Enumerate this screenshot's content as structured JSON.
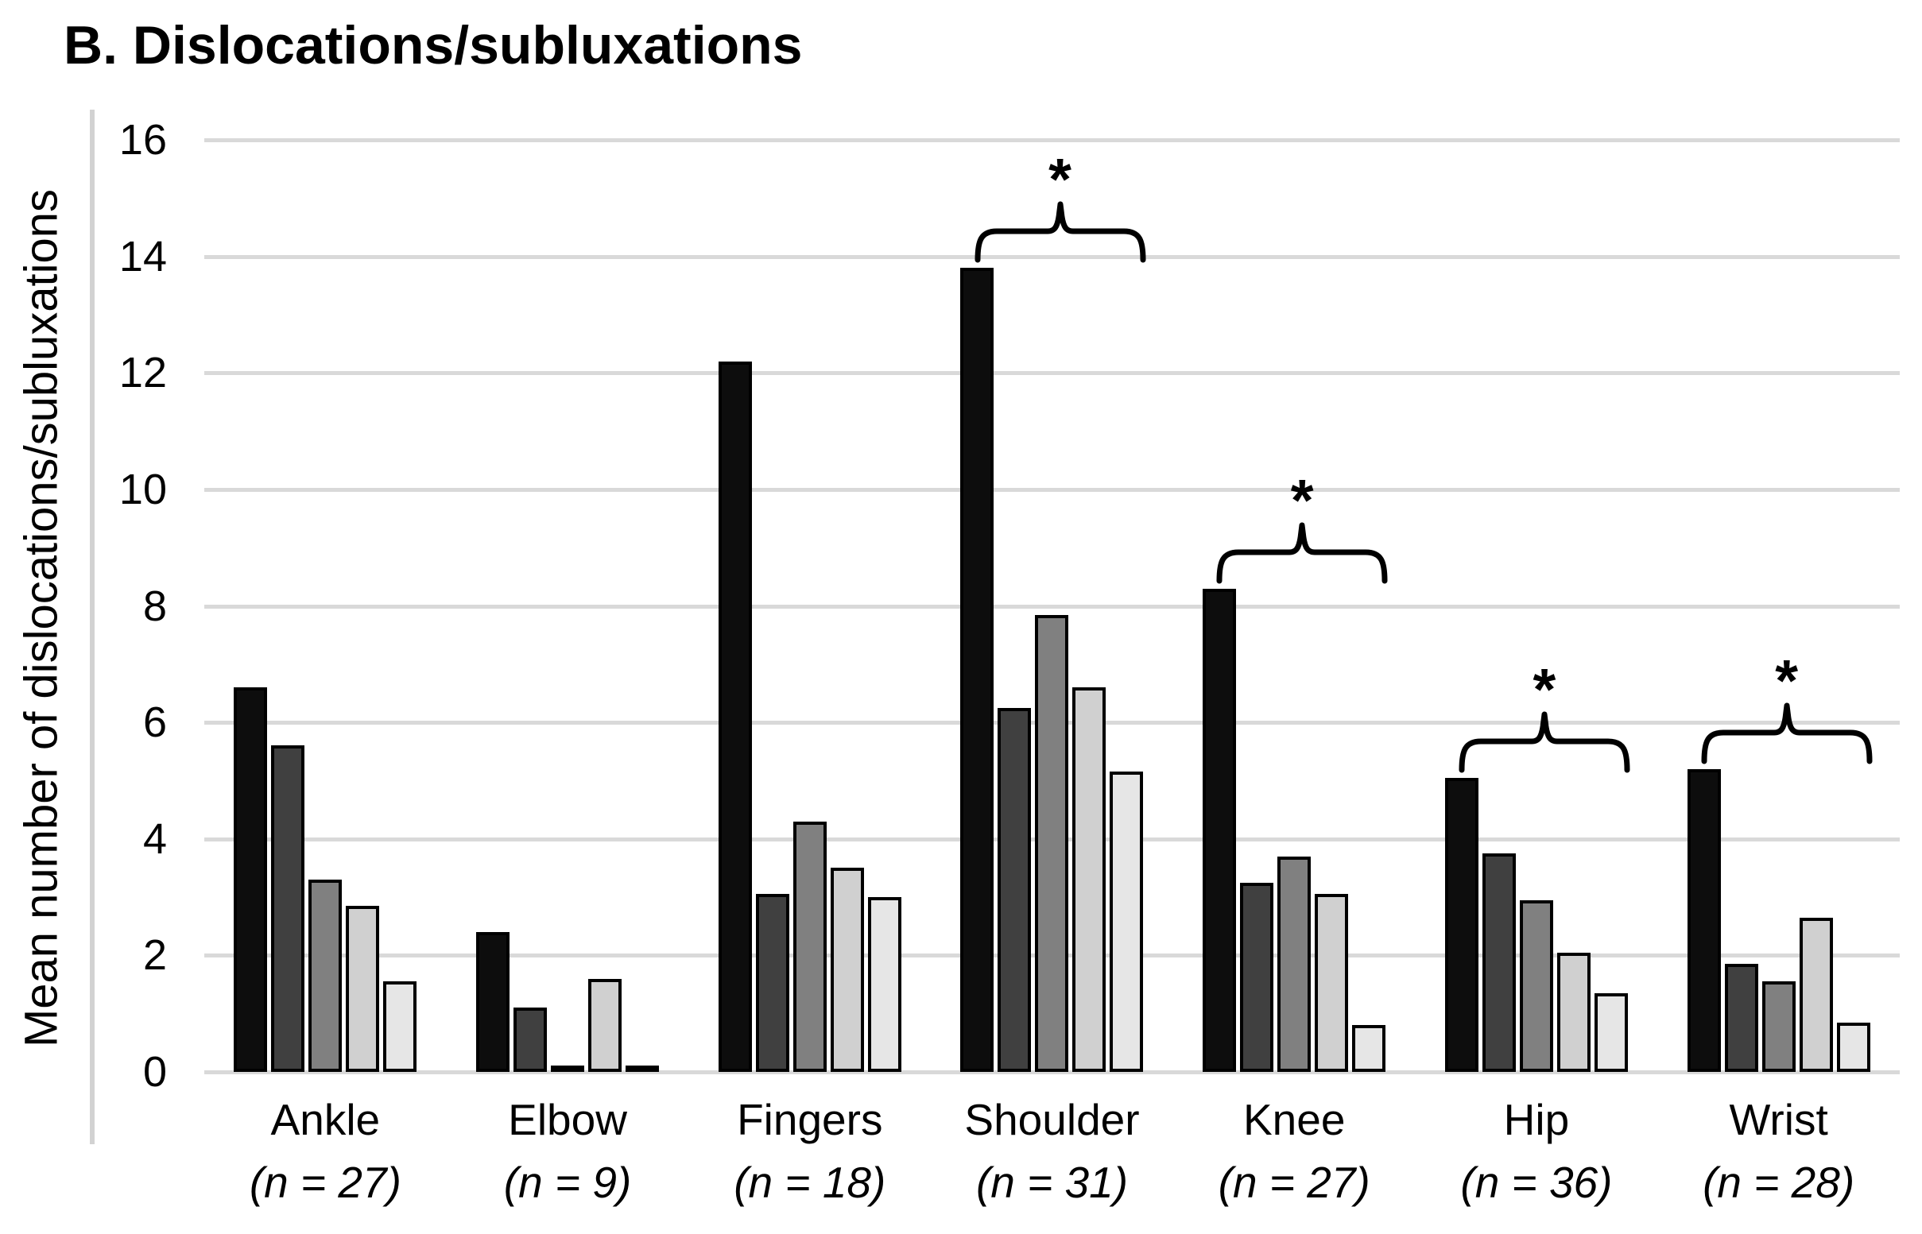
{
  "figure": {
    "title": "B. Dislocations/subluxations",
    "y_axis_label": "Mean number of dislocations/subluxations"
  },
  "chart_data": {
    "type": "bar",
    "title": "B. Dislocations/subluxations",
    "xlabel": "",
    "ylabel": "Mean number of dislocations/subluxations",
    "ylim": [
      0,
      16
    ],
    "yticks": [
      0,
      2,
      4,
      6,
      8,
      10,
      12,
      14,
      16
    ],
    "grid": true,
    "legend_position": "none",
    "categories": [
      "Ankle",
      "Elbow",
      "Fingers",
      "Shoulder",
      "Knee",
      "Hip",
      "Wrist"
    ],
    "category_sublabels": [
      "(n = 27)",
      "(n = 9)",
      "(n = 18)",
      "(n = 31)",
      "(n = 27)",
      "(n = 36)",
      "(n = 28)"
    ],
    "series": [
      {
        "name": "series-1-black",
        "color": "#0d0d0d",
        "values": [
          6.6,
          2.4,
          12.2,
          13.8,
          8.3,
          5.05,
          5.2
        ]
      },
      {
        "name": "series-2-dark-gray",
        "color": "#404040",
        "values": [
          5.6,
          1.1,
          3.05,
          6.25,
          3.25,
          3.75,
          1.85
        ]
      },
      {
        "name": "series-3-medium-gray",
        "color": "#808080",
        "values": [
          3.3,
          0.1,
          4.3,
          7.85,
          3.7,
          2.95,
          1.55
        ]
      },
      {
        "name": "series-4-light-gray",
        "color": "#d0d0d0",
        "values": [
          2.85,
          1.6,
          3.5,
          6.6,
          3.05,
          2.05,
          2.65
        ]
      },
      {
        "name": "series-5-lightest-gray",
        "color": "#e6e6e6",
        "values": [
          1.55,
          0.05,
          3.0,
          5.15,
          0.8,
          1.35,
          0.85
        ]
      }
    ],
    "significance_brackets": [
      {
        "category": "Shoulder",
        "label": "*"
      },
      {
        "category": "Knee",
        "label": "*"
      },
      {
        "category": "Hip",
        "label": "*"
      },
      {
        "category": "Wrist",
        "label": "*"
      }
    ],
    "colors": {
      "gridline": "#d9d9d9",
      "axis_line": "#d2d2d2",
      "bar_border": "#000000",
      "text": "#000000"
    }
  }
}
